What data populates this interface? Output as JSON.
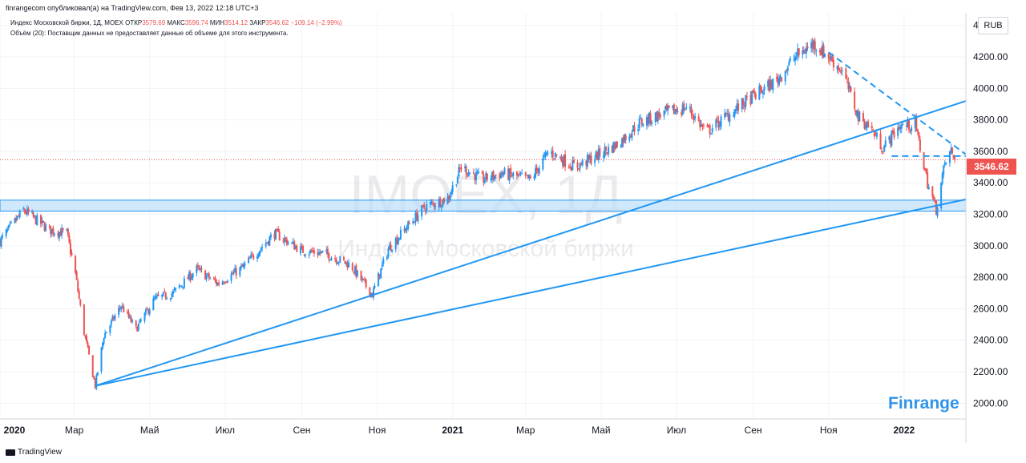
{
  "header": {
    "publisher_line": "finrangecom опубликовал(а) на TradingView.com, Фев 13, 2022 12:18 UTC+3"
  },
  "legend": {
    "instrument": "Индекс Московской биржи, 1Д, MOEX",
    "open_label": "ОТКР",
    "open": "3579.69",
    "high_label": "МАКС",
    "high": "3596.74",
    "low_label": "МИН",
    "low": "3514.12",
    "close_label": "ЗАКР",
    "close": "3546.62",
    "change": "−109.14 (−2.99%)",
    "volume_note": "Объём (20): Поставщик данных не предоставляет данные об объеме для этого инструмента."
  },
  "watermark": {
    "symbol": "IMOEX, 1Д",
    "name": "Индекс Московской биржи"
  },
  "currency": "RUB",
  "last_price_label": "3546.62",
  "brand": "Finrange",
  "footer_logo": "TradingView",
  "colors": {
    "up": "#2196f3",
    "down": "#ef5350",
    "trendline": "#2196f3",
    "zone_fill": "#bbdefb",
    "price_tag": "#ef5350",
    "brand": "#2f94e8"
  },
  "chart_data": {
    "type": "line",
    "title": "Индекс Московской биржи, 1Д, MOEX",
    "xlabel": "",
    "ylabel": "",
    "ylim": [
      1900,
      4480
    ],
    "yticks": [
      2000,
      2200,
      2400,
      2600,
      2800,
      3000,
      3200,
      3400,
      3600,
      3800,
      4000,
      4200,
      4400
    ],
    "ytick_labels": [
      "2000.00",
      "2200.00",
      "2400.00",
      "2600.00",
      "2800.00",
      "3000.00",
      "3200.00",
      "3400.00",
      "3600.00",
      "3800.00",
      "4000.00",
      "4200.00",
      "4400.00"
    ],
    "xlim": [
      "2020-01-01",
      "2022-02-20"
    ],
    "xticks": [
      {
        "date": "2020-01-01",
        "label": "2020",
        "bold": true
      },
      {
        "date": "2020-03-01",
        "label": "Мар"
      },
      {
        "date": "2020-05-01",
        "label": "Май"
      },
      {
        "date": "2020-07-01",
        "label": "Июл"
      },
      {
        "date": "2020-09-01",
        "label": "Сен"
      },
      {
        "date": "2020-11-01",
        "label": "Ноя"
      },
      {
        "date": "2021-01-01",
        "label": "2021",
        "bold": true
      },
      {
        "date": "2021-03-01",
        "label": "Мар"
      },
      {
        "date": "2021-05-01",
        "label": "Май"
      },
      {
        "date": "2021-07-01",
        "label": "Июл"
      },
      {
        "date": "2021-09-01",
        "label": "Сен"
      },
      {
        "date": "2021-11-01",
        "label": "Ноя"
      },
      {
        "date": "2022-01-01",
        "label": "2022",
        "bold": true
      }
    ],
    "series": [
      {
        "style": "candles",
        "points": [
          {
            "date": "2020-01-01",
            "value": 3030
          },
          {
            "date": "2020-01-20",
            "value": 3225
          },
          {
            "date": "2020-02-10",
            "value": 3100
          },
          {
            "date": "2020-02-24",
            "value": 3080
          },
          {
            "date": "2020-03-02",
            "value": 2820
          },
          {
            "date": "2020-03-09",
            "value": 2450
          },
          {
            "date": "2020-03-18",
            "value": 2110
          },
          {
            "date": "2020-03-25",
            "value": 2430
          },
          {
            "date": "2020-04-08",
            "value": 2620
          },
          {
            "date": "2020-04-20",
            "value": 2470
          },
          {
            "date": "2020-05-05",
            "value": 2660
          },
          {
            "date": "2020-05-20",
            "value": 2700
          },
          {
            "date": "2020-06-08",
            "value": 2850
          },
          {
            "date": "2020-06-25",
            "value": 2760
          },
          {
            "date": "2020-07-15",
            "value": 2860
          },
          {
            "date": "2020-08-10",
            "value": 3080
          },
          {
            "date": "2020-09-01",
            "value": 2970
          },
          {
            "date": "2020-09-20",
            "value": 2950
          },
          {
            "date": "2020-10-10",
            "value": 2880
          },
          {
            "date": "2020-10-28",
            "value": 2690
          },
          {
            "date": "2020-11-10",
            "value": 2980
          },
          {
            "date": "2020-11-25",
            "value": 3120
          },
          {
            "date": "2020-12-10",
            "value": 3250
          },
          {
            "date": "2020-12-28",
            "value": 3300
          },
          {
            "date": "2021-01-08",
            "value": 3500
          },
          {
            "date": "2021-01-25",
            "value": 3420
          },
          {
            "date": "2021-02-10",
            "value": 3460
          },
          {
            "date": "2021-03-05",
            "value": 3420
          },
          {
            "date": "2021-03-20",
            "value": 3600
          },
          {
            "date": "2021-04-10",
            "value": 3500
          },
          {
            "date": "2021-04-25",
            "value": 3560
          },
          {
            "date": "2021-05-15",
            "value": 3650
          },
          {
            "date": "2021-06-01",
            "value": 3780
          },
          {
            "date": "2021-06-20",
            "value": 3840
          },
          {
            "date": "2021-07-10",
            "value": 3880
          },
          {
            "date": "2021-07-25",
            "value": 3720
          },
          {
            "date": "2021-08-15",
            "value": 3850
          },
          {
            "date": "2021-09-01",
            "value": 3950
          },
          {
            "date": "2021-09-20",
            "value": 4050
          },
          {
            "date": "2021-10-05",
            "value": 4200
          },
          {
            "date": "2021-10-20",
            "value": 4285
          },
          {
            "date": "2021-11-01",
            "value": 4200
          },
          {
            "date": "2021-11-12",
            "value": 4110
          },
          {
            "date": "2021-11-25",
            "value": 3820
          },
          {
            "date": "2021-12-05",
            "value": 3750
          },
          {
            "date": "2021-12-15",
            "value": 3620
          },
          {
            "date": "2021-12-28",
            "value": 3760
          },
          {
            "date": "2022-01-10",
            "value": 3770
          },
          {
            "date": "2022-01-20",
            "value": 3400
          },
          {
            "date": "2022-01-27",
            "value": 3230
          },
          {
            "date": "2022-02-03",
            "value": 3520
          },
          {
            "date": "2022-02-08",
            "value": 3600
          },
          {
            "date": "2022-02-11",
            "value": 3546.62
          }
        ]
      }
    ],
    "support_zone": [
      3220,
      3290
    ],
    "trendlines": [
      {
        "style": "solid",
        "from": {
          "date": "2020-03-18",
          "value": 2110
        },
        "to": {
          "date": "2022-02-20",
          "value": 3920
        }
      },
      {
        "style": "solid",
        "from": {
          "date": "2020-03-18",
          "value": 2110
        },
        "to": {
          "date": "2022-02-20",
          "value": 3295
        }
      },
      {
        "style": "dashed",
        "from": {
          "date": "2021-11-01",
          "value": 4230
        },
        "to": {
          "date": "2022-02-20",
          "value": 3580
        }
      },
      {
        "style": "dashed",
        "from": {
          "date": "2021-12-22",
          "value": 3570
        },
        "to": {
          "date": "2022-02-20",
          "value": 3570
        }
      }
    ],
    "last_close": 3546.62
  }
}
